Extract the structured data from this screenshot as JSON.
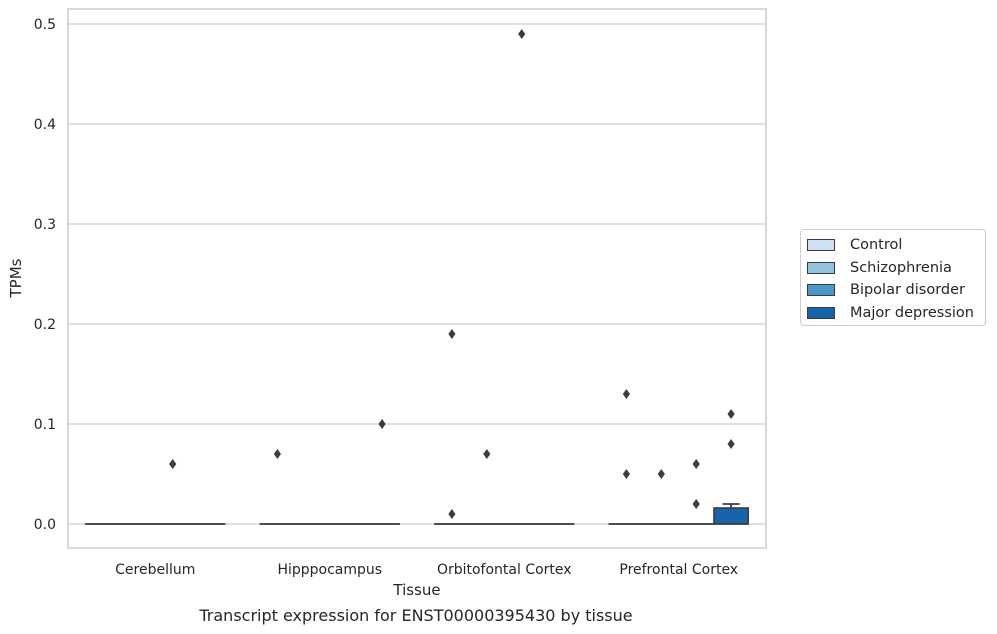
{
  "chart_data": {
    "type": "box",
    "title": "Transcript expression for ENST00000395430 by tissue",
    "xlabel": "Tissue",
    "ylabel": "TPMs",
    "ylim": [
      -0.024,
      0.516
    ],
    "yticks": [
      "0.0",
      "0.1",
      "0.2",
      "0.3",
      "0.4",
      "0.5"
    ],
    "ytick_values": [
      0.0,
      0.1,
      0.2,
      0.3,
      0.4,
      0.5
    ],
    "grid": true,
    "legend_position": "right",
    "categories": [
      "Cerebellum",
      "Hipppocampus",
      "Orbitofontal Cortex",
      "Prefrontal Cortex"
    ],
    "series": [
      {
        "name": "Control",
        "color": "#cfe1f2",
        "boxes": [
          {
            "q1": 0,
            "median": 0,
            "q3": 0,
            "whisker_low": 0,
            "whisker_high": 0,
            "outliers": []
          },
          {
            "q1": 0,
            "median": 0,
            "q3": 0,
            "whisker_low": 0,
            "whisker_high": 0,
            "outliers": [
              0.07
            ]
          },
          {
            "q1": 0,
            "median": 0,
            "q3": 0,
            "whisker_low": 0,
            "whisker_high": 0,
            "outliers": [
              0.19,
              0.01
            ]
          },
          {
            "q1": 0,
            "median": 0,
            "q3": 0,
            "whisker_low": 0,
            "whisker_high": 0,
            "outliers": [
              0.13,
              0.05
            ]
          }
        ]
      },
      {
        "name": "Schizophrenia",
        "color": "#93c4de",
        "boxes": [
          {
            "q1": 0,
            "median": 0,
            "q3": 0,
            "whisker_low": 0,
            "whisker_high": 0,
            "outliers": []
          },
          {
            "q1": 0,
            "median": 0,
            "q3": 0,
            "whisker_low": 0,
            "whisker_high": 0,
            "outliers": []
          },
          {
            "q1": 0,
            "median": 0,
            "q3": 0,
            "whisker_low": 0,
            "whisker_high": 0,
            "outliers": [
              0.07
            ]
          },
          {
            "q1": 0,
            "median": 0,
            "q3": 0,
            "whisker_low": 0,
            "whisker_high": 0,
            "outliers": [
              0.05
            ]
          }
        ]
      },
      {
        "name": "Bipolar disorder",
        "color": "#4a98c9",
        "boxes": [
          {
            "q1": 0,
            "median": 0,
            "q3": 0,
            "whisker_low": 0,
            "whisker_high": 0,
            "outliers": [
              0.06
            ]
          },
          {
            "q1": 0,
            "median": 0,
            "q3": 0,
            "whisker_low": 0,
            "whisker_high": 0,
            "outliers": []
          },
          {
            "q1": 0,
            "median": 0,
            "q3": 0,
            "whisker_low": 0,
            "whisker_high": 0,
            "outliers": [
              0.49
            ]
          },
          {
            "q1": 0,
            "median": 0,
            "q3": 0,
            "whisker_low": 0,
            "whisker_high": 0,
            "outliers": [
              0.06,
              0.02
            ]
          }
        ]
      },
      {
        "name": "Major depression",
        "color": "#1764ab",
        "boxes": [
          {
            "q1": 0,
            "median": 0,
            "q3": 0,
            "whisker_low": 0,
            "whisker_high": 0,
            "outliers": []
          },
          {
            "q1": 0,
            "median": 0,
            "q3": 0,
            "whisker_low": 0,
            "whisker_high": 0,
            "outliers": [
              0.1
            ]
          },
          {
            "q1": 0,
            "median": 0,
            "q3": 0,
            "whisker_low": 0,
            "whisker_high": 0,
            "outliers": []
          },
          {
            "q1": 0,
            "median": 0,
            "q3": 0.016,
            "whisker_low": 0,
            "whisker_high": 0.02,
            "outliers": [
              0.11,
              0.08
            ]
          }
        ]
      }
    ]
  }
}
